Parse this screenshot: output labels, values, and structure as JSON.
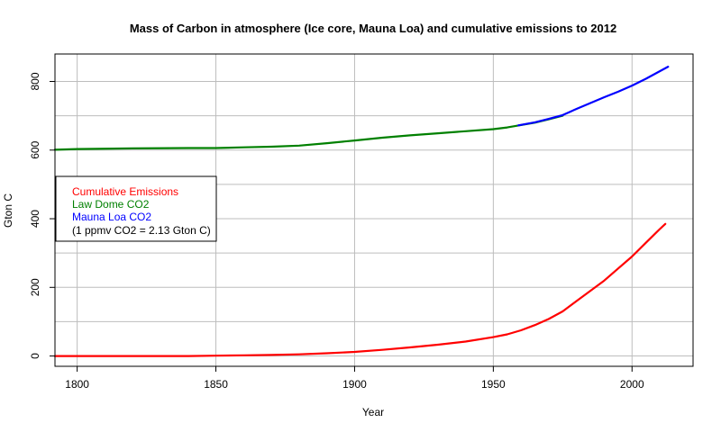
{
  "chart_data": {
    "type": "line",
    "title": "Mass of Carbon in atmosphere (Ice core, Mauna Loa) and cumulative emissions to 2012",
    "xlabel": "Year",
    "ylabel": "Gton C",
    "xlim": [
      1792,
      2022
    ],
    "ylim": [
      -30,
      880
    ],
    "x_ticks": [
      "1800",
      "1850",
      "1900",
      "1950",
      "2000"
    ],
    "y_ticks": [
      "0",
      "200",
      "400",
      "600",
      "800"
    ],
    "grid": true,
    "legend": {
      "placement": "left",
      "entries": [
        {
          "label": "Cumulative Emissions",
          "color": "#ff0000"
        },
        {
          "label": "Law Dome CO2",
          "color": "#008000"
        },
        {
          "label": "Mauna Loa CO2",
          "color": "#0000ff"
        },
        {
          "label": "(1 ppmv CO2 = 2.13 Gton C)",
          "color": "#000000"
        }
      ]
    },
    "series": [
      {
        "name": "Cumulative Emissions",
        "color": "#ff0000",
        "x": [
          1792,
          1800,
          1820,
          1840,
          1850,
          1860,
          1870,
          1880,
          1890,
          1900,
          1910,
          1920,
          1930,
          1940,
          1950,
          1955,
          1960,
          1965,
          1970,
          1975,
          1980,
          1985,
          1990,
          1995,
          2000,
          2005,
          2010,
          2012
        ],
        "y": [
          0,
          0,
          0,
          0,
          1,
          2,
          3,
          5,
          8,
          12,
          18,
          25,
          33,
          42,
          55,
          63,
          75,
          90,
          108,
          130,
          160,
          190,
          220,
          255,
          290,
          330,
          370,
          385
        ]
      },
      {
        "name": "Law Dome CO2",
        "color": "#008000",
        "x": [
          1792,
          1800,
          1820,
          1840,
          1850,
          1860,
          1870,
          1880,
          1890,
          1900,
          1910,
          1920,
          1930,
          1940,
          1950,
          1955,
          1960,
          1965,
          1970,
          1975
        ],
        "y": [
          601,
          603,
          605,
          606,
          606,
          608,
          610,
          613,
          620,
          628,
          636,
          643,
          649,
          655,
          661,
          666,
          673,
          680,
          690,
          700
        ]
      },
      {
        "name": "Mauna Loa CO2",
        "color": "#0000ff",
        "x": [
          1959,
          1965,
          1970,
          1975,
          1980,
          1985,
          1990,
          1995,
          2000,
          2005,
          2010,
          2013
        ],
        "y": [
          672,
          681,
          691,
          702,
          720,
          737,
          754,
          770,
          788,
          808,
          830,
          843
        ]
      }
    ]
  }
}
